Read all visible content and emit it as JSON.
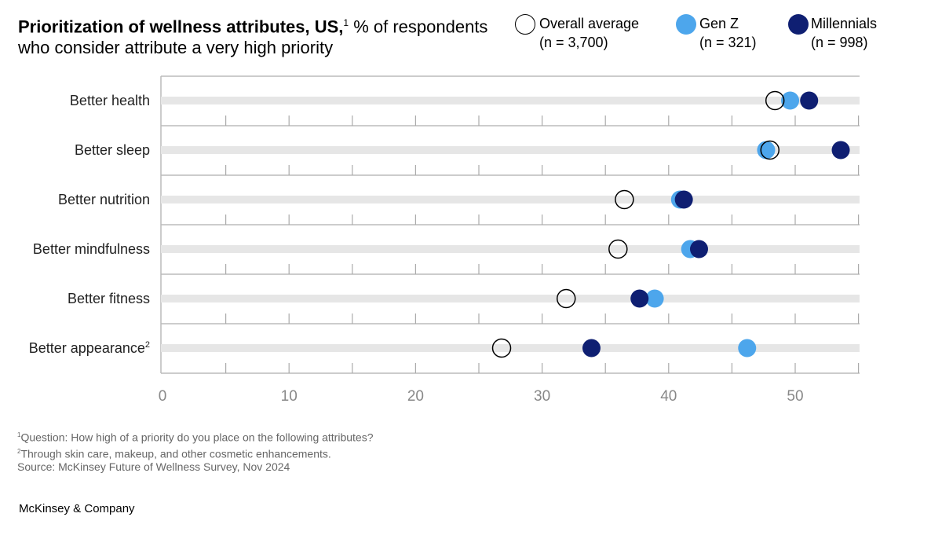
{
  "chart_data": {
    "type": "dot",
    "title": "Prioritization of wellness attributes, US,",
    "title_sup": "1",
    "subtitle": " % of respondents who consider attribute a very high priority",
    "categories": [
      "Better health",
      "Better sleep",
      "Better nutrition",
      "Better mindfulness",
      "Better fitness",
      "Better appearance"
    ],
    "category_sups": [
      "",
      "",
      "",
      "",
      "",
      "2"
    ],
    "series": [
      {
        "name": "Overall average",
        "n": "(n = 3,700)",
        "color": "#ffffff",
        "stroke": "#000000",
        "values": [
          48.4,
          48.0,
          36.5,
          36.0,
          31.9,
          26.8
        ]
      },
      {
        "name": "Gen Z",
        "n": "(n = 321)",
        "color": "#4da6ec",
        "stroke": "#4da6ec",
        "values": [
          49.6,
          47.7,
          40.9,
          41.7,
          38.9,
          46.2
        ]
      },
      {
        "name": "Millennials",
        "n": "(n = 998)",
        "color": "#0f1f72",
        "stroke": "#0f1f72",
        "values": [
          51.1,
          53.6,
          41.2,
          42.4,
          37.7,
          33.9
        ]
      }
    ],
    "xlim": [
      0,
      55
    ],
    "xticks": [
      0,
      10,
      20,
      30,
      40,
      50
    ],
    "legend_placement": "top-right",
    "track_color": "#e6e6e6"
  },
  "footnotes": [
    {
      "sup": "1",
      "text": "Question: How high of a priority do you place on the following attributes?"
    },
    {
      "sup": "2",
      "text": "Through skin care, makeup, and other cosmetic enhancements."
    },
    {
      "sup": "",
      "text": " Source: McKinsey Future of Wellness Survey, Nov 2024"
    }
  ],
  "brand": "McKinsey & Company"
}
